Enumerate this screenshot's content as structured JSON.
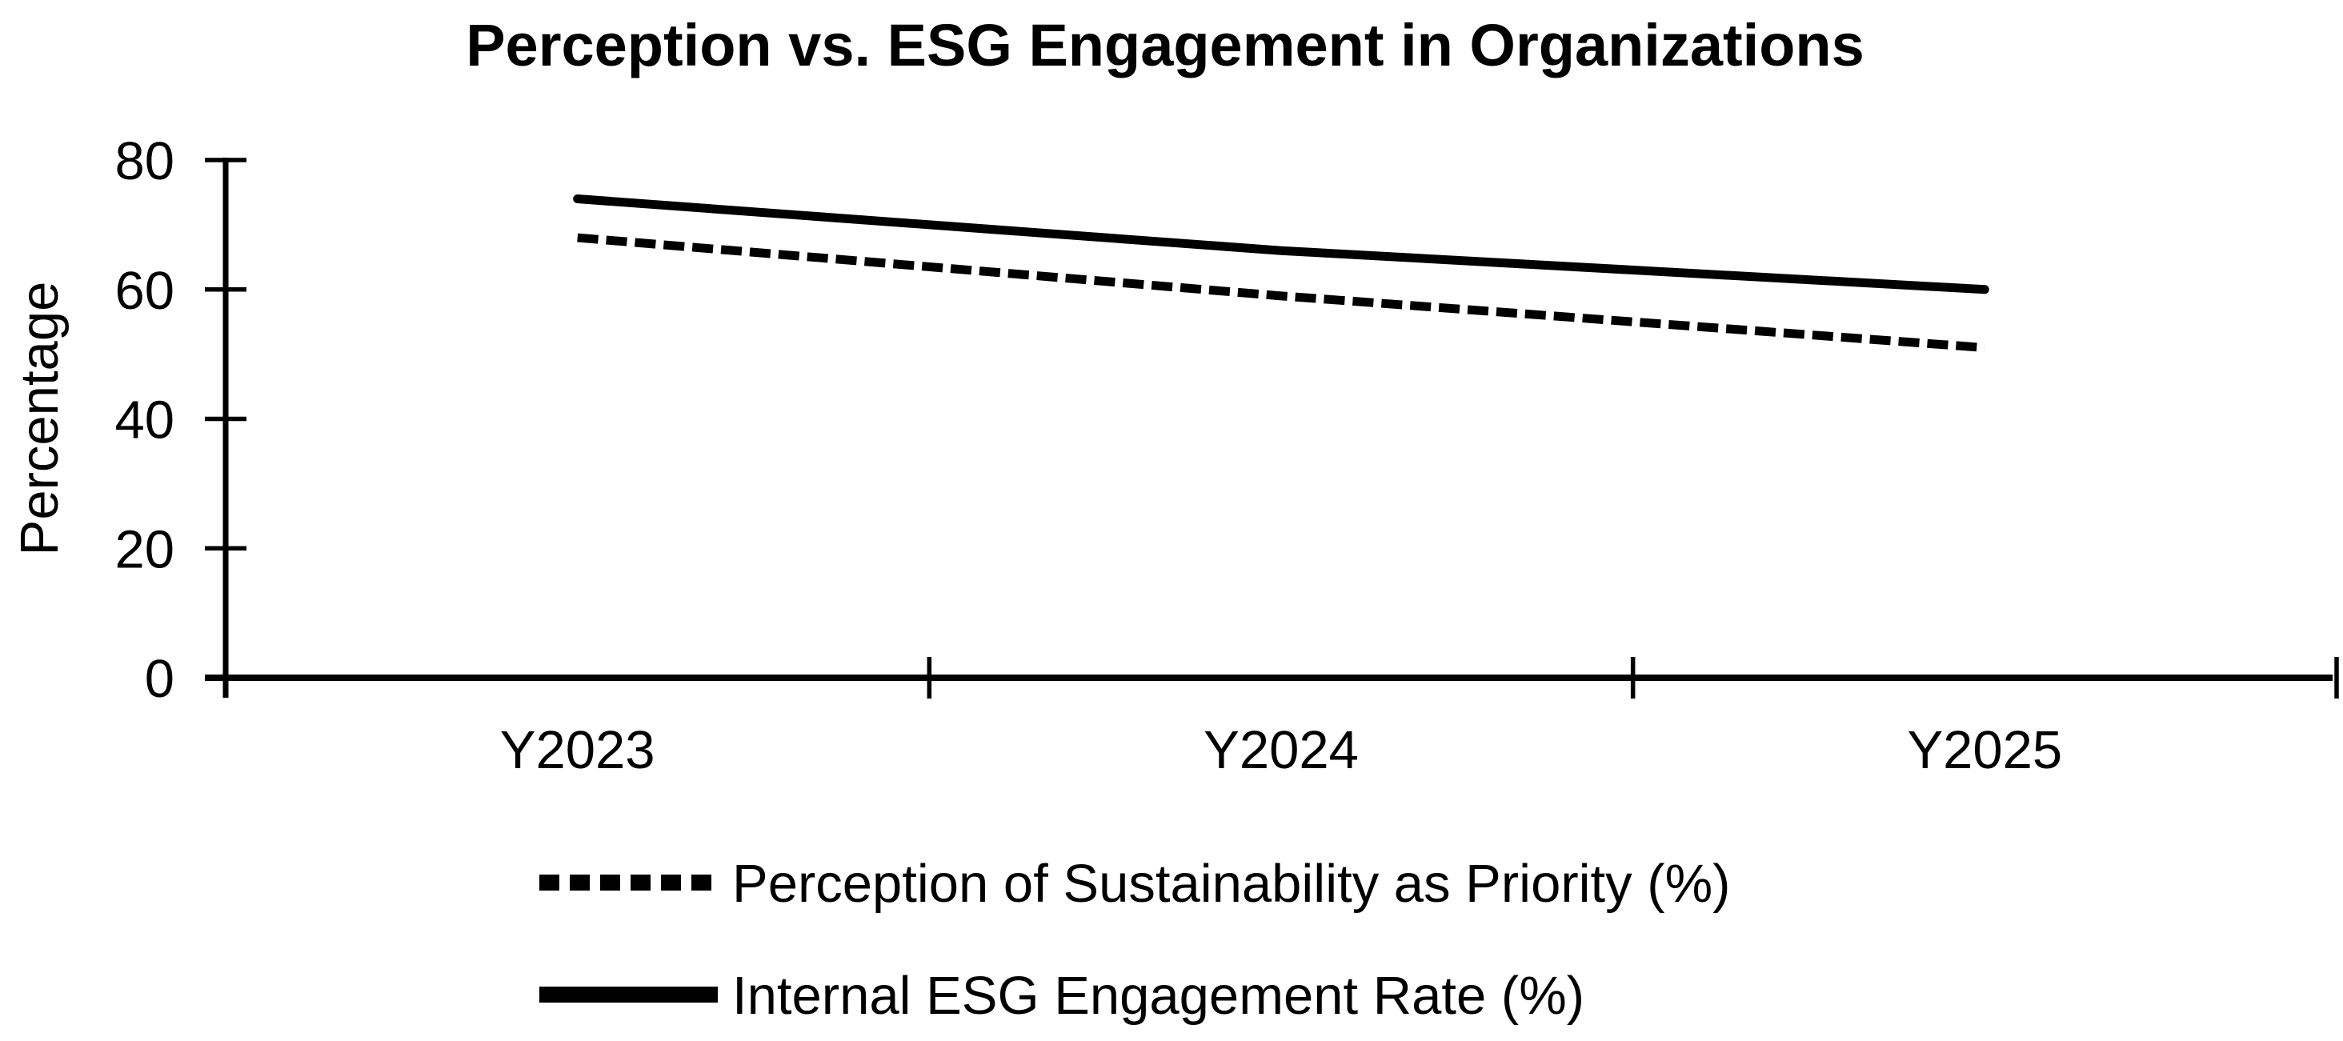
{
  "page": {
    "background": "#ffffff",
    "ink_color": "#000000"
  },
  "chart_data": {
    "type": "line",
    "title": "Perception vs. ESG Engagement in Organizations",
    "ylabel": "Percentage",
    "xlabel": "",
    "categories": [
      "Y2023",
      "Y2024",
      "Y2025"
    ],
    "series": [
      {
        "name": "Perception of Sustainability as Priority (%)",
        "style": "dashed",
        "color": "#000000",
        "values": [
          68,
          59,
          51
        ]
      },
      {
        "name": "Internal ESG Engagement Rate (%)",
        "style": "solid",
        "color": "#000000",
        "values": [
          74,
          66,
          60
        ]
      }
    ],
    "ylim": [
      0,
      80
    ],
    "yticks": [
      0,
      20,
      40,
      60,
      80
    ],
    "grid": false,
    "legend_position": "bottom-left"
  }
}
